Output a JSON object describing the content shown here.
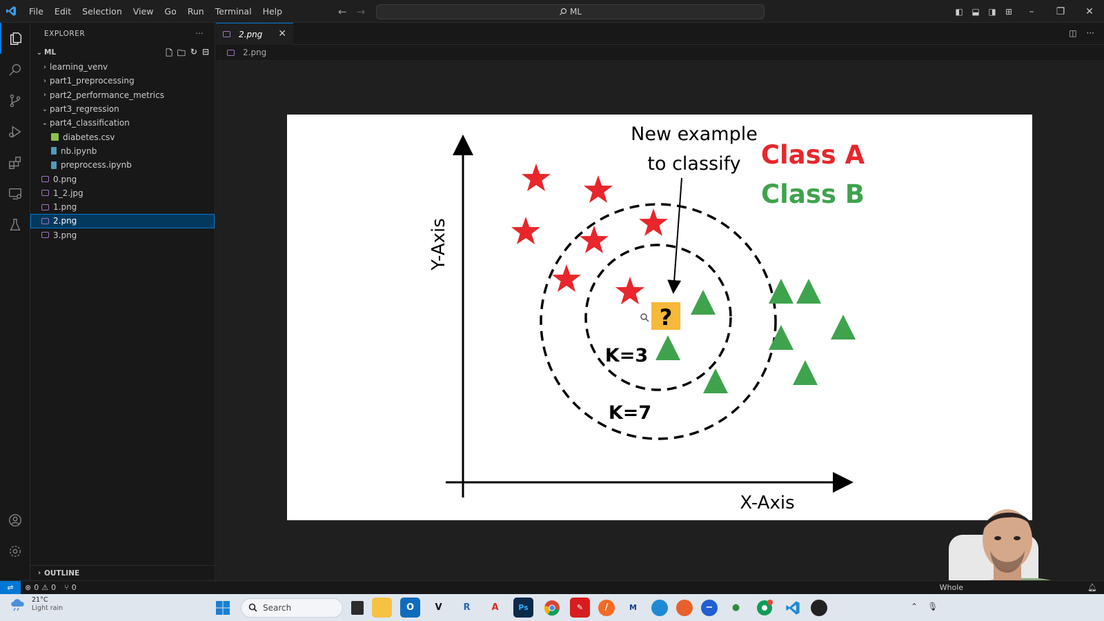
{
  "app": {
    "title_search": "ML",
    "menu": [
      "File",
      "Edit",
      "Selection",
      "View",
      "Go",
      "Run",
      "Terminal",
      "Help"
    ]
  },
  "explorer": {
    "header": "EXPLORER",
    "root": "ML",
    "items": [
      {
        "label": "learning_venv",
        "type": "folder",
        "expanded": false,
        "depth": 1
      },
      {
        "label": "part1_preprocessing",
        "type": "folder",
        "expanded": false,
        "depth": 1
      },
      {
        "label": "part2_performance_metrics",
        "type": "folder",
        "expanded": false,
        "depth": 1
      },
      {
        "label": "part3_regression",
        "type": "folder",
        "expanded": true,
        "depth": 1
      },
      {
        "label": "part4_classification",
        "type": "folder",
        "expanded": true,
        "depth": 1
      },
      {
        "label": "diabetes.csv",
        "type": "csv",
        "depth": 2
      },
      {
        "label": "nb.ipynb",
        "type": "notebook",
        "depth": 2
      },
      {
        "label": "preprocess.ipynb",
        "type": "notebook",
        "depth": 2
      },
      {
        "label": "0.png",
        "type": "image",
        "depth": 1
      },
      {
        "label": "1_2.jpg",
        "type": "image",
        "depth": 1
      },
      {
        "label": "1.png",
        "type": "image",
        "depth": 1
      },
      {
        "label": "2.png",
        "type": "image",
        "depth": 1,
        "selected": true
      },
      {
        "label": "3.png",
        "type": "image",
        "depth": 1
      }
    ],
    "outline_label": "OUTLINE"
  },
  "editor": {
    "tab_label": "2.png",
    "breadcrumb": "2.png"
  },
  "image": {
    "annotation_line1": "New example",
    "annotation_line2": "to classify",
    "class_a": "Class A",
    "class_b": "Class B",
    "y_axis": "Y-Axis",
    "x_axis": "X-Axis",
    "k3": "K=3",
    "k7": "K=7",
    "query": "?",
    "class_a_color": "#e8262b",
    "class_b_color": "#3fa34d",
    "query_color": "#f6b93b"
  },
  "status": {
    "errors": "0",
    "warnings": "0",
    "ports": "0",
    "right_text": "Whole"
  },
  "taskbar": {
    "temp": "21°C",
    "weather": "Light rain",
    "search": "Search"
  }
}
